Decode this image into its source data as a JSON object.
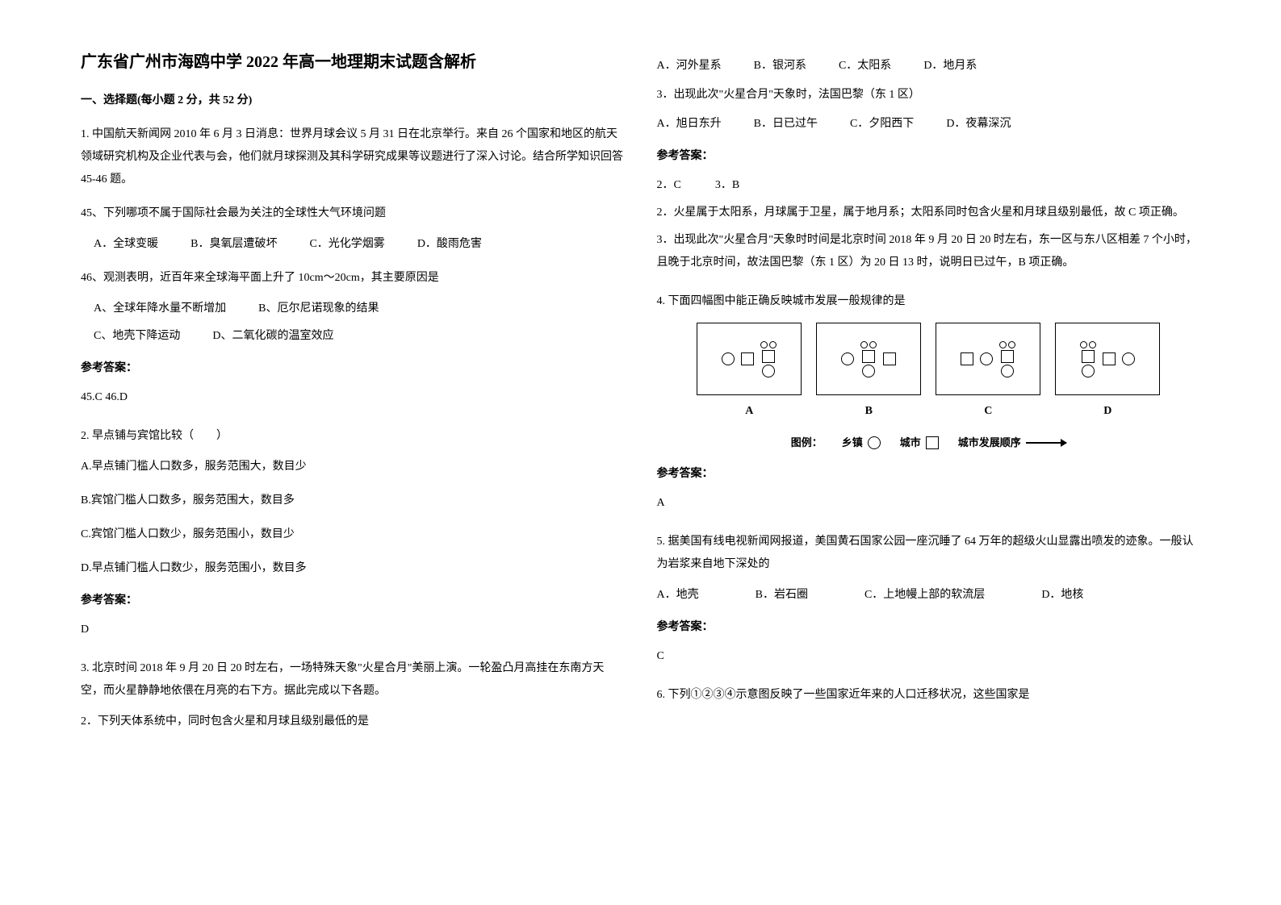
{
  "title": "广东省广州市海鸥中学 2022 年高一地理期末试题含解析",
  "section1": {
    "header": "一、选择题(每小题 2 分，共 52 分)"
  },
  "q1": {
    "intro": "1. 中国航天新闻网 2010 年 6 月 3 日消息：世界月球会议 5 月 31 日在北京举行。来自 26 个国家和地区的航天领域研究机构及企业代表与会，他们就月球探测及其科学研究成果等议题进行了深入讨论。结合所学知识回答 45-46 题。",
    "sub45": "45、下列哪项不属于国际社会最为关注的全球性大气环境问题",
    "opts45": {
      "a": "A．全球变暖",
      "b": "B．臭氧层遭破坏",
      "c": "C．光化学烟雾",
      "d": "D．酸雨危害"
    },
    "sub46": "46、观测表明，近百年来全球海平面上升了 10cm～20cm，其主要原因是",
    "opts46": {
      "a": "A、全球年降水量不断增加",
      "b": "B、厄尔尼诺现象的结果",
      "c": "C、地壳下降运动",
      "d": "D、二氧化碳的温室效应"
    },
    "answer_label": "参考答案：",
    "answer": "45.C  46.D"
  },
  "q2": {
    "text": "2. 早点铺与宾馆比较（　　）",
    "opts": {
      "a": "A.早点铺门槛人口数多，服务范围大，数目少",
      "b": "B.宾馆门槛人口数多，服务范围大，数目多",
      "c": "C.宾馆门槛人口数少，服务范围小，数目少",
      "d": "D.早点铺门槛人口数少，服务范围小，数目多"
    },
    "answer_label": "参考答案：",
    "answer": "D"
  },
  "q3": {
    "intro": "3. 北京时间 2018 年 9 月 20 日 20 时左右，一场特殊天象\"火星合月\"美丽上演。一轮盈凸月高挂在东南方天空，而火星静静地依偎在月亮的右下方。据此完成以下各题。",
    "sub2": "2．下列天体系统中，同时包含火星和月球且级别最低的是",
    "opts2": {
      "a": "A．河外星系",
      "b": "B．银河系",
      "c": "C．太阳系",
      "d": "D．地月系"
    },
    "sub3": "3．出现此次\"火星合月\"天象时，法国巴黎（东 1 区）",
    "opts3": {
      "a": "A．旭日东升",
      "b": "B．日已过午",
      "c": "C．夕阳西下",
      "d": "D．夜幕深沉"
    },
    "answer_label": "参考答案：",
    "answer_line1": "2．C　　　3．B",
    "explain2": "2．火星属于太阳系，月球属于卫星，属于地月系；太阳系同时包含火星和月球且级别最低，故 C 项正确。",
    "explain3": "3．出现此次\"火星合月\"天象时时间是北京时间 2018 年 9 月 20 日 20 时左右，东一区与东八区相差 7 个小时，且晚于北京时间，故法国巴黎（东 1 区）为 20 日 13 时，说明日已过午，B 项正确。"
  },
  "q4": {
    "text": "4. 下面四幅图中能正确反映城市发展一般规律的是",
    "panels": {
      "a": "A",
      "b": "B",
      "c": "C",
      "d": "D"
    },
    "legend": {
      "label": "图例：",
      "xiang": "乡镇",
      "city": "城市",
      "arrow": "城市发展顺序"
    },
    "answer_label": "参考答案：",
    "answer": "A"
  },
  "q5": {
    "text": "5. 据美国有线电视新闻网报道，美国黄石国家公园一座沉睡了 64 万年的超级火山显露出喷发的迹象。一般认为岩浆来自地下深处的",
    "opts": {
      "a": "A．地壳",
      "b": "B．岩石圈",
      "c": "C．上地幔上部的软流层",
      "d": "D．地核"
    },
    "answer_label": "参考答案：",
    "answer": "C"
  },
  "q6": {
    "text": "6. 下列①②③④示意图反映了一些国家近年来的人口迁移状况，这些国家是"
  }
}
